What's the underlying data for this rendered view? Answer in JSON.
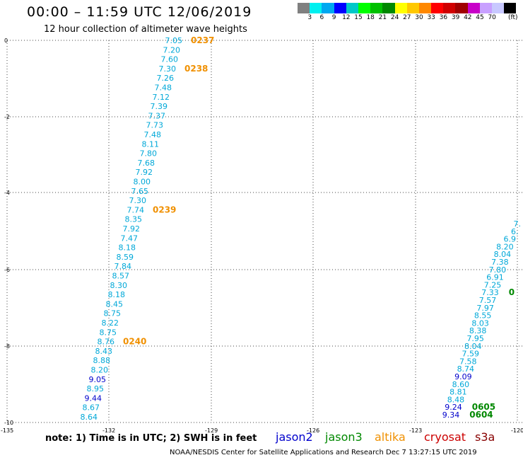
{
  "header": {
    "title": "00:00 – 11:59 UTC 12/06/2019",
    "subtitle": "12 hour collection of altimeter wave heights"
  },
  "scale": {
    "colors": [
      "#808080",
      "#00f0f0",
      "#00a8f0",
      "#0000ff",
      "#00c8c8",
      "#00ff00",
      "#00c000",
      "#008800",
      "#ffff00",
      "#ffc800",
      "#ff8800",
      "#ff0000",
      "#d00000",
      "#a00000",
      "#c800c8",
      "#c8a0ff",
      "#c8c8ff",
      "#000000"
    ],
    "labels": [
      "3",
      "6",
      "9",
      "12",
      "15",
      "18",
      "21",
      "24",
      "27",
      "30",
      "33",
      "36",
      "39",
      "42",
      "45",
      "70"
    ],
    "unit": "(ft)"
  },
  "map": {
    "lat_labels": [
      "0",
      "-2",
      "-4",
      "-6",
      "-8",
      "-10"
    ],
    "lon_labels": [
      "-135",
      "-132",
      "-129",
      "-126",
      "-123",
      "-120"
    ],
    "colors": {
      "altika_label": "#f09000",
      "jason3_label": "#008800",
      "cyan_values": "#00a8d8",
      "blue_values": "#0000cc"
    }
  },
  "tracks": [
    {
      "id": "track-west",
      "values": [
        {
          "v": "7.05",
          "c": "#00a8d8"
        },
        {
          "v": "7.20",
          "c": "#00a8d8"
        },
        {
          "v": "7.60",
          "c": "#00a8d8"
        },
        {
          "v": "7.30",
          "c": "#00a8d8"
        },
        {
          "v": "7.26",
          "c": "#00a8d8"
        },
        {
          "v": "7.48",
          "c": "#00a8d8"
        },
        {
          "v": "7.12",
          "c": "#00a8d8"
        },
        {
          "v": "7.39",
          "c": "#00a8d8"
        },
        {
          "v": "7.37",
          "c": "#00a8d8"
        },
        {
          "v": "7.73",
          "c": "#00a8d8"
        },
        {
          "v": "7.48",
          "c": "#00a8d8"
        },
        {
          "v": "8.11",
          "c": "#00a8d8"
        },
        {
          "v": "7.80",
          "c": "#00a8d8"
        },
        {
          "v": "7.68",
          "c": "#00a8d8"
        },
        {
          "v": "7.92",
          "c": "#00a8d8"
        },
        {
          "v": "8.00",
          "c": "#00a8d8"
        },
        {
          "v": "7.65",
          "c": "#00a8d8"
        },
        {
          "v": "7.30",
          "c": "#00a8d8"
        },
        {
          "v": "7.74",
          "c": "#00a8d8"
        },
        {
          "v": "8.35",
          "c": "#00a8d8"
        },
        {
          "v": "7.92",
          "c": "#00a8d8"
        },
        {
          "v": "7.47",
          "c": "#00a8d8"
        },
        {
          "v": "8.18",
          "c": "#00a8d8"
        },
        {
          "v": "8.59",
          "c": "#00a8d8"
        },
        {
          "v": "7.84",
          "c": "#00a8d8"
        },
        {
          "v": "8.57",
          "c": "#00a8d8"
        },
        {
          "v": "8.30",
          "c": "#00a8d8"
        },
        {
          "v": "8.18",
          "c": "#00a8d8"
        },
        {
          "v": "8.45",
          "c": "#00a8d8"
        },
        {
          "v": "8.75",
          "c": "#00a8d8"
        },
        {
          "v": "8.22",
          "c": "#00a8d8"
        },
        {
          "v": "8.75",
          "c": "#00a8d8"
        },
        {
          "v": "8.76",
          "c": "#00a8d8"
        },
        {
          "v": "8.43",
          "c": "#00a8d8"
        },
        {
          "v": "8.88",
          "c": "#00a8d8"
        },
        {
          "v": "8.20",
          "c": "#00a8d8"
        },
        {
          "v": "9.05",
          "c": "#0000cc"
        },
        {
          "v": "8.95",
          "c": "#00a8d8"
        },
        {
          "v": "9.44",
          "c": "#0000cc"
        },
        {
          "v": "8.67",
          "c": "#00a8d8"
        },
        {
          "v": "8.64",
          "c": "#00a8d8"
        }
      ],
      "time_labels": [
        {
          "label": "0237",
          "after": 0,
          "c": "#f09000"
        },
        {
          "label": "0238",
          "after": 3,
          "c": "#f09000"
        },
        {
          "label": "0239",
          "after": 18,
          "c": "#f09000"
        },
        {
          "label": "0240",
          "after": 32,
          "c": "#f09000"
        }
      ]
    },
    {
      "id": "track-east",
      "values": [
        {
          "v": "7.",
          "c": "#00a8d8"
        },
        {
          "v": "6.",
          "c": "#00a8d8"
        },
        {
          "v": "6.9",
          "c": "#00a8d8"
        },
        {
          "v": "8.20",
          "c": "#00a8d8"
        },
        {
          "v": "8.04",
          "c": "#00a8d8"
        },
        {
          "v": "7.38",
          "c": "#00a8d8"
        },
        {
          "v": "7.80",
          "c": "#00a8d8"
        },
        {
          "v": "6.91",
          "c": "#00a8d8"
        },
        {
          "v": "7.25",
          "c": "#00a8d8"
        },
        {
          "v": "7.33",
          "c": "#00a8d8"
        },
        {
          "v": "7.57",
          "c": "#00a8d8"
        },
        {
          "v": "7.97",
          "c": "#00a8d8"
        },
        {
          "v": "8.55",
          "c": "#00a8d8"
        },
        {
          "v": "8.03",
          "c": "#00a8d8"
        },
        {
          "v": "8.38",
          "c": "#00a8d8"
        },
        {
          "v": "7.95",
          "c": "#00a8d8"
        },
        {
          "v": "8.04",
          "c": "#00a8d8"
        },
        {
          "v": "7.59",
          "c": "#00a8d8"
        },
        {
          "v": "7.58",
          "c": "#00a8d8"
        },
        {
          "v": "8.74",
          "c": "#00a8d8"
        },
        {
          "v": "9.09",
          "c": "#0000cc"
        },
        {
          "v": "8.60",
          "c": "#00a8d8"
        },
        {
          "v": "8.81",
          "c": "#00a8d8"
        },
        {
          "v": "8.48",
          "c": "#00a8d8"
        },
        {
          "v": "9.24",
          "c": "#0000cc"
        },
        {
          "v": "9.34",
          "c": "#0000cc"
        }
      ],
      "time_labels": [
        {
          "label": "0",
          "after": 9,
          "c": "#008800"
        },
        {
          "label": "0605",
          "after": 24,
          "c": "#008800"
        },
        {
          "label": "0604",
          "after": 25,
          "c": "#008800"
        }
      ]
    }
  ],
  "footer": {
    "note": "note: 1) Time is in UTC; 2) SWH is in feet",
    "legend": [
      {
        "label": "jason2",
        "color": "#0000cc"
      },
      {
        "label": "jason3",
        "color": "#008800"
      },
      {
        "label": "altika",
        "color": "#f09000"
      },
      {
        "label": "cryosat",
        "color": "#cc0000"
      },
      {
        "label": "s3a",
        "color": "#880000"
      }
    ],
    "credit": "NOAA/NESDIS Center for Satellite Applications and Research   Dec  7 13:27:15 UTC 2019"
  }
}
